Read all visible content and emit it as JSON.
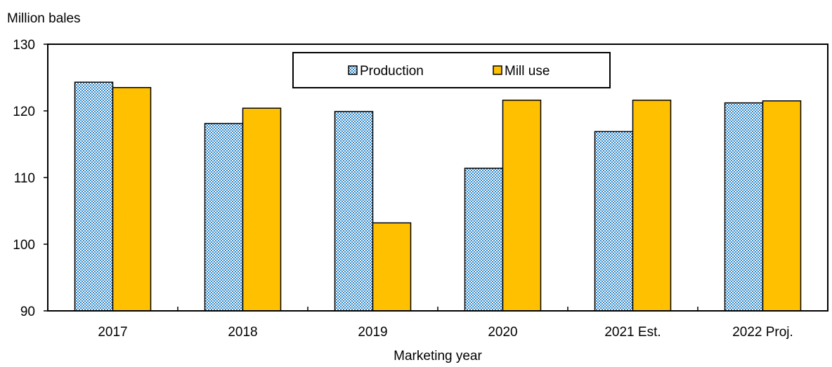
{
  "chart_data": {
    "type": "bar",
    "title": "",
    "ylabel": "Million bales",
    "xlabel": "Marketing year",
    "categories": [
      "2017",
      "2018",
      "2019",
      "2020",
      "2021 Est.",
      "2022 Proj."
    ],
    "ylim": [
      90,
      130
    ],
    "yticks": [
      90,
      100,
      110,
      120,
      130
    ],
    "grid": false,
    "legend_position": "top-center",
    "series": [
      {
        "name": "Production",
        "values": [
          124.3,
          118.1,
          119.9,
          111.4,
          116.9,
          121.2
        ],
        "color": "#3C8FC8",
        "pattern": "dotted-checker"
      },
      {
        "name": "Mill use",
        "values": [
          123.5,
          120.4,
          103.2,
          121.6,
          121.6,
          121.5
        ],
        "color": "#FFC000"
      }
    ]
  }
}
